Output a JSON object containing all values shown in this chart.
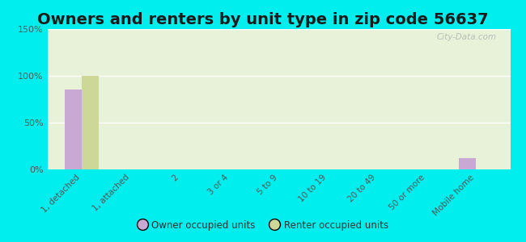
{
  "title": "Owners and renters by unit type in zip code 56637",
  "categories": [
    "1, detached",
    "1, attached",
    "2",
    "3 or 4",
    "5 to 9",
    "10 to 19",
    "20 to 49",
    "50 or more",
    "Mobile home"
  ],
  "owner_values": [
    85,
    0,
    0,
    0,
    0,
    0,
    0,
    0,
    12
  ],
  "renter_values": [
    100,
    0,
    0,
    0,
    0,
    0,
    0,
    0,
    0
  ],
  "owner_color": "#c9a8d4",
  "renter_color": "#cdd898",
  "background_color": "#00eeee",
  "plot_bg_color": "#e8f2d8",
  "ylim": [
    0,
    150
  ],
  "yticks": [
    0,
    50,
    100,
    150
  ],
  "ytick_labels": [
    "0%",
    "50%",
    "100%",
    "150%"
  ],
  "bar_width": 0.35,
  "title_fontsize": 14,
  "watermark": "City-Data.com",
  "legend_owner": "Owner occupied units",
  "legend_renter": "Renter occupied units"
}
